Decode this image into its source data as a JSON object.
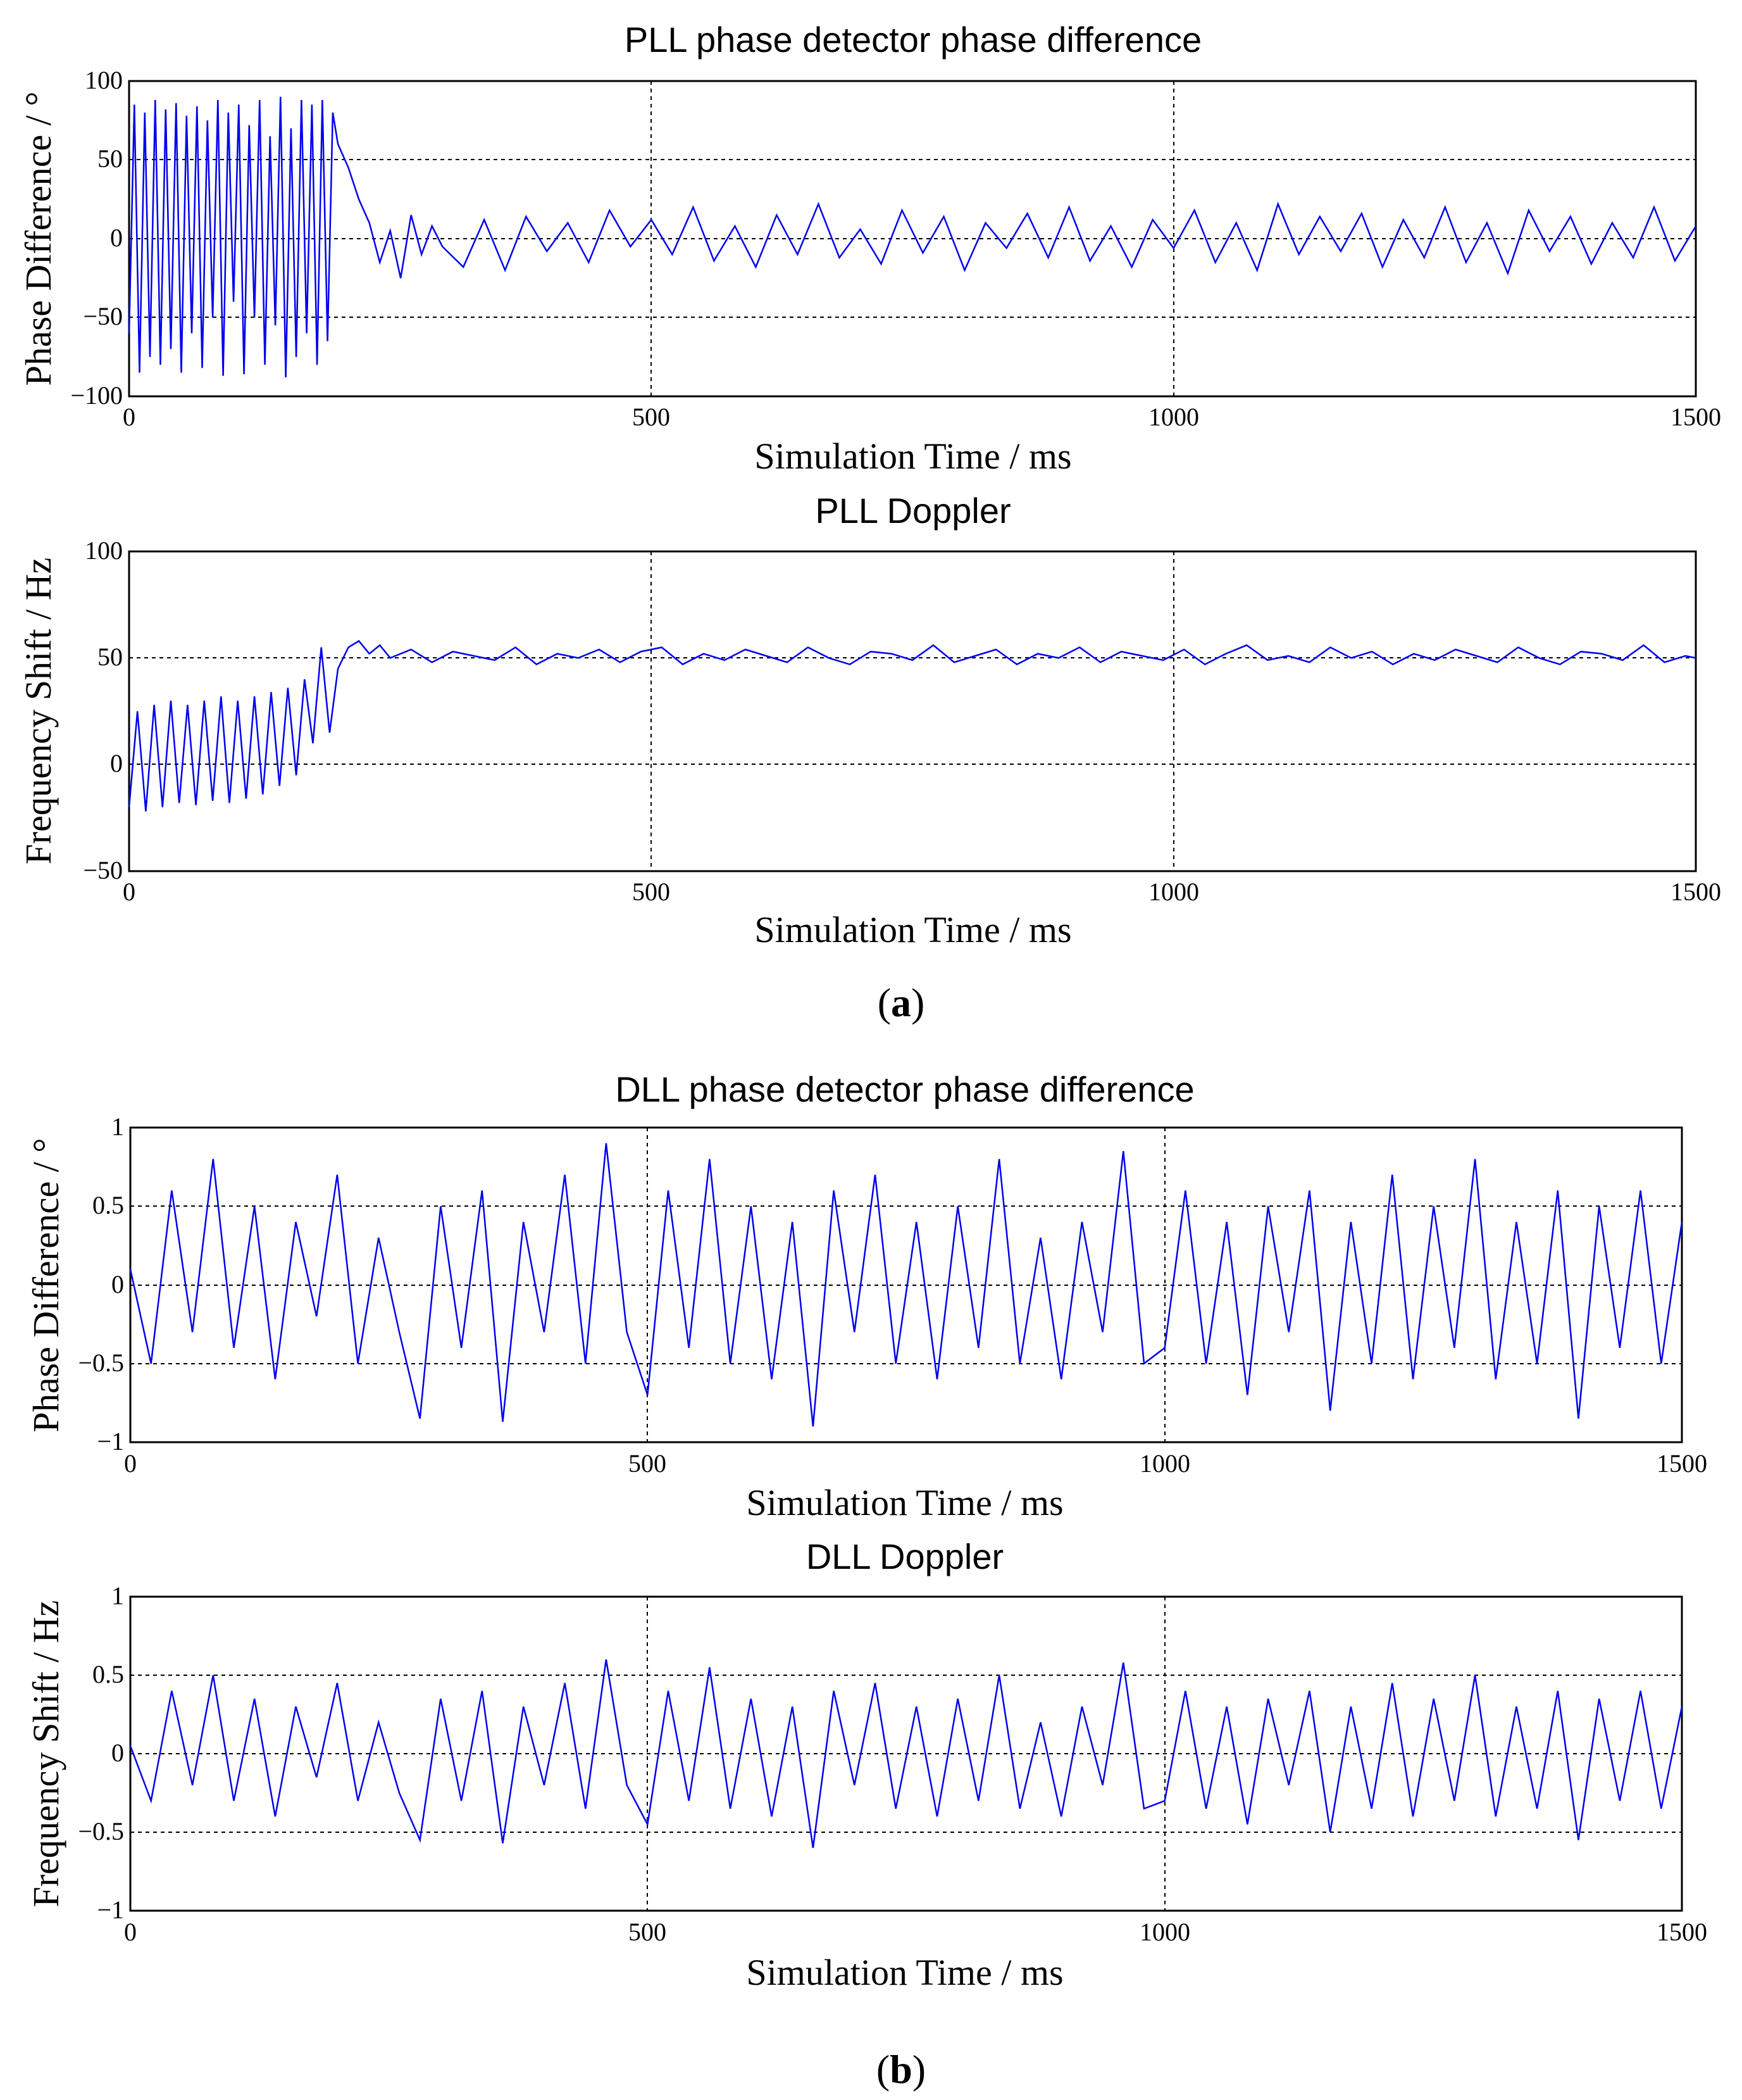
{
  "chart_data": [
    {
      "type": "line",
      "title": "PLL phase detector phase difference",
      "xlabel": "Simulation Time / ms",
      "ylabel": "Phase Difference / °",
      "xlim": [
        0,
        1500
      ],
      "ylim": [
        -100,
        100
      ],
      "xticks": [
        0,
        500,
        1000,
        1500
      ],
      "yticks": [
        -100,
        -50,
        0,
        50,
        100
      ],
      "xtick_labels": [
        "0",
        "500",
        "1000",
        "1500"
      ],
      "ytick_labels": [
        "−100",
        "−50",
        "0",
        "50",
        "100"
      ],
      "grid": true,
      "color": "#0000ee",
      "series": [
        {
          "name": "phase difference",
          "x": [
            0,
            5,
            10,
            15,
            20,
            25,
            30,
            35,
            40,
            45,
            50,
            55,
            60,
            65,
            70,
            75,
            80,
            85,
            90,
            95,
            100,
            105,
            110,
            115,
            120,
            125,
            130,
            135,
            140,
            145,
            150,
            155,
            160,
            165,
            170,
            175,
            180,
            185,
            190,
            195,
            200,
            210,
            220,
            230,
            240,
            250,
            260,
            270,
            280,
            290,
            300,
            320,
            340,
            360,
            380,
            400,
            420,
            440,
            460,
            480,
            500,
            520,
            540,
            560,
            580,
            600,
            620,
            640,
            660,
            680,
            700,
            720,
            740,
            760,
            780,
            800,
            820,
            840,
            860,
            880,
            900,
            920,
            940,
            960,
            980,
            1000,
            1020,
            1040,
            1060,
            1080,
            1100,
            1120,
            1140,
            1160,
            1180,
            1200,
            1220,
            1240,
            1260,
            1280,
            1300,
            1320,
            1340,
            1360,
            1380,
            1400,
            1420,
            1440,
            1460,
            1480,
            1500
          ],
          "y": [
            -60,
            85,
            -85,
            80,
            -75,
            88,
            -80,
            82,
            -70,
            86,
            -85,
            78,
            -60,
            84,
            -82,
            75,
            -50,
            88,
            -87,
            80,
            -40,
            85,
            -86,
            72,
            -50,
            88,
            -80,
            65,
            -55,
            90,
            -88,
            70,
            -75,
            88,
            -60,
            85,
            -80,
            88,
            -65,
            80,
            60,
            45,
            25,
            10,
            -15,
            5,
            -25,
            15,
            -10,
            8,
            -5,
            -18,
            12,
            -20,
            14,
            -8,
            10,
            -15,
            18,
            -5,
            12,
            -10,
            20,
            -14,
            8,
            -18,
            15,
            -10,
            22,
            -12,
            6,
            -16,
            18,
            -9,
            14,
            -20,
            10,
            -6,
            16,
            -12,
            20,
            -14,
            8,
            -18,
            12,
            -6,
            18,
            -15,
            10,
            -20,
            22,
            -10,
            14,
            -8,
            16,
            -18,
            12,
            -12,
            20,
            -15,
            10,
            -22,
            18,
            -8,
            14,
            -16,
            10,
            -12,
            20,
            -14,
            8
          ]
        }
      ]
    },
    {
      "type": "line",
      "title": "PLL Doppler",
      "xlabel": "Simulation Time / ms",
      "ylabel": "Frequency Shift / Hz",
      "xlim": [
        0,
        1500
      ],
      "ylim": [
        -50,
        100
      ],
      "xticks": [
        0,
        500,
        1000,
        1500
      ],
      "yticks": [
        -50,
        0,
        50,
        100
      ],
      "xtick_labels": [
        "0",
        "500",
        "1000",
        "1500"
      ],
      "ytick_labels": [
        "−50",
        "0",
        "50",
        "100"
      ],
      "grid": true,
      "color": "#0000ee",
      "series": [
        {
          "name": "doppler",
          "x": [
            0,
            8,
            16,
            24,
            32,
            40,
            48,
            56,
            64,
            72,
            80,
            88,
            96,
            104,
            112,
            120,
            128,
            136,
            144,
            152,
            160,
            168,
            176,
            184,
            192,
            200,
            210,
            220,
            230,
            240,
            250,
            270,
            290,
            310,
            330,
            350,
            370,
            390,
            410,
            430,
            450,
            470,
            490,
            510,
            530,
            550,
            570,
            590,
            610,
            630,
            650,
            670,
            690,
            710,
            730,
            750,
            770,
            790,
            810,
            830,
            850,
            870,
            890,
            910,
            930,
            950,
            970,
            990,
            1010,
            1030,
            1050,
            1070,
            1090,
            1110,
            1130,
            1150,
            1170,
            1190,
            1210,
            1230,
            1250,
            1270,
            1290,
            1310,
            1330,
            1350,
            1370,
            1390,
            1410,
            1430,
            1450,
            1470,
            1490,
            1500
          ],
          "y": [
            -20,
            25,
            -22,
            28,
            -20,
            30,
            -18,
            28,
            -19,
            30,
            -17,
            32,
            -18,
            30,
            -16,
            32,
            -14,
            34,
            -10,
            36,
            -5,
            40,
            10,
            55,
            15,
            45,
            55,
            58,
            52,
            56,
            50,
            54,
            48,
            53,
            51,
            49,
            55,
            47,
            52,
            50,
            54,
            48,
            53,
            55,
            47,
            52,
            49,
            54,
            51,
            48,
            55,
            50,
            47,
            53,
            52,
            49,
            56,
            48,
            51,
            54,
            47,
            52,
            50,
            55,
            48,
            53,
            51,
            49,
            54,
            47,
            52,
            56,
            49,
            51,
            48,
            55,
            50,
            53,
            47,
            52,
            49,
            54,
            51,
            48,
            55,
            50,
            47,
            53,
            52,
            49,
            56,
            48,
            51,
            50
          ]
        }
      ]
    },
    {
      "type": "line",
      "title": "DLL phase detector phase difference",
      "xlabel": "Simulation Time / ms",
      "ylabel": "Phase Difference / °",
      "xlim": [
        0,
        1500
      ],
      "ylim": [
        -1,
        1
      ],
      "xticks": [
        0,
        500,
        1000,
        1500
      ],
      "yticks": [
        -1,
        -0.5,
        0,
        0.5,
        1
      ],
      "xtick_labels": [
        "0",
        "500",
        "1000",
        "1500"
      ],
      "ytick_labels": [
        "−1",
        "−0.5",
        "0",
        "0.5",
        "1"
      ],
      "grid": true,
      "color": "#0000ee",
      "series": [
        {
          "name": "dll phase difference",
          "x": [
            0,
            20,
            40,
            60,
            80,
            100,
            120,
            140,
            160,
            180,
            200,
            220,
            240,
            260,
            280,
            300,
            320,
            340,
            360,
            380,
            400,
            420,
            440,
            460,
            480,
            500,
            520,
            540,
            560,
            580,
            600,
            620,
            640,
            660,
            680,
            700,
            720,
            740,
            760,
            780,
            800,
            820,
            840,
            860,
            880,
            900,
            920,
            940,
            960,
            980,
            1000,
            1020,
            1040,
            1060,
            1080,
            1100,
            1120,
            1140,
            1160,
            1180,
            1200,
            1220,
            1240,
            1260,
            1280,
            1300,
            1320,
            1340,
            1360,
            1380,
            1400,
            1420,
            1440,
            1460,
            1480,
            1500
          ],
          "y": [
            0.1,
            -0.5,
            0.6,
            -0.3,
            0.8,
            -0.4,
            0.5,
            -0.6,
            0.4,
            -0.2,
            0.7,
            -0.5,
            0.3,
            -0.3,
            -0.85,
            0.5,
            -0.4,
            0.6,
            -0.87,
            0.4,
            -0.3,
            0.7,
            -0.5,
            0.9,
            -0.3,
            -0.7,
            0.6,
            -0.4,
            0.8,
            -0.5,
            0.5,
            -0.6,
            0.4,
            -0.9,
            0.6,
            -0.3,
            0.7,
            -0.5,
            0.4,
            -0.6,
            0.5,
            -0.4,
            0.8,
            -0.5,
            0.3,
            -0.6,
            0.4,
            -0.3,
            0.85,
            -0.5,
            -0.4,
            0.6,
            -0.5,
            0.4,
            -0.7,
            0.5,
            -0.3,
            0.6,
            -0.8,
            0.4,
            -0.5,
            0.7,
            -0.6,
            0.5,
            -0.4,
            0.8,
            -0.6,
            0.4,
            -0.5,
            0.6,
            -0.85,
            0.5,
            -0.4,
            0.6,
            -0.5,
            0.4
          ]
        }
      ]
    },
    {
      "type": "line",
      "title": "DLL Doppler",
      "xlabel": "Simulation Time / ms",
      "ylabel": "Frequency Shift / Hz",
      "xlim": [
        0,
        1500
      ],
      "ylim": [
        -1,
        1
      ],
      "xticks": [
        0,
        500,
        1000,
        1500
      ],
      "yticks": [
        -1,
        -0.5,
        0,
        0.5,
        1
      ],
      "xtick_labels": [
        "0",
        "500",
        "1000",
        "1500"
      ],
      "ytick_labels": [
        "−1",
        "−0.5",
        "0",
        "0.5",
        "1"
      ],
      "grid": true,
      "color": "#0000ee",
      "series": [
        {
          "name": "dll doppler",
          "x": [
            0,
            20,
            40,
            60,
            80,
            100,
            120,
            140,
            160,
            180,
            200,
            220,
            240,
            260,
            280,
            300,
            320,
            340,
            360,
            380,
            400,
            420,
            440,
            460,
            480,
            500,
            520,
            540,
            560,
            580,
            600,
            620,
            640,
            660,
            680,
            700,
            720,
            740,
            760,
            780,
            800,
            820,
            840,
            860,
            880,
            900,
            920,
            940,
            960,
            980,
            1000,
            1020,
            1040,
            1060,
            1080,
            1100,
            1120,
            1140,
            1160,
            1180,
            1200,
            1220,
            1240,
            1260,
            1280,
            1300,
            1320,
            1340,
            1360,
            1380,
            1400,
            1420,
            1440,
            1460,
            1480,
            1500
          ],
          "y": [
            0.05,
            -0.3,
            0.4,
            -0.2,
            0.5,
            -0.3,
            0.35,
            -0.4,
            0.3,
            -0.15,
            0.45,
            -0.3,
            0.2,
            -0.25,
            -0.55,
            0.35,
            -0.3,
            0.4,
            -0.57,
            0.3,
            -0.2,
            0.45,
            -0.35,
            0.6,
            -0.2,
            -0.45,
            0.4,
            -0.3,
            0.55,
            -0.35,
            0.35,
            -0.4,
            0.3,
            -0.6,
            0.4,
            -0.2,
            0.45,
            -0.35,
            0.3,
            -0.4,
            0.35,
            -0.3,
            0.5,
            -0.35,
            0.2,
            -0.4,
            0.3,
            -0.2,
            0.58,
            -0.35,
            -0.3,
            0.4,
            -0.35,
            0.3,
            -0.45,
            0.35,
            -0.2,
            0.4,
            -0.5,
            0.3,
            -0.35,
            0.45,
            -0.4,
            0.35,
            -0.3,
            0.5,
            -0.4,
            0.3,
            -0.35,
            0.4,
            -0.55,
            0.35,
            -0.3,
            0.4,
            -0.35,
            0.3
          ]
        }
      ]
    }
  ],
  "captions": {
    "a": {
      "open": "(",
      "letter": "a",
      "close": ")"
    },
    "b": {
      "open": "(",
      "letter": "b",
      "close": ")"
    }
  }
}
